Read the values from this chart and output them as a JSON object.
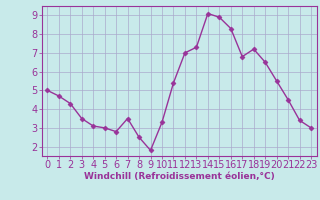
{
  "x": [
    0,
    1,
    2,
    3,
    4,
    5,
    6,
    7,
    8,
    9,
    10,
    11,
    12,
    13,
    14,
    15,
    16,
    17,
    18,
    19,
    20,
    21,
    22,
    23
  ],
  "y": [
    5.0,
    4.7,
    4.3,
    3.5,
    3.1,
    3.0,
    2.8,
    3.5,
    2.5,
    1.8,
    3.3,
    5.4,
    7.0,
    7.3,
    9.1,
    8.9,
    8.3,
    6.8,
    7.2,
    6.5,
    5.5,
    4.5,
    3.4,
    3.0
  ],
  "line_color": "#993399",
  "marker": "D",
  "marker_size": 2.5,
  "bg_color": "#c8eaea",
  "grid_color": "#aaaacc",
  "xlabel": "Windchill (Refroidissement éolien,°C)",
  "xlabel_color": "#993399",
  "tick_color": "#993399",
  "label_color": "#993399",
  "spine_color": "#993399",
  "ylim": [
    1.5,
    9.5
  ],
  "xlim": [
    -0.5,
    23.5
  ],
  "yticks": [
    2,
    3,
    4,
    5,
    6,
    7,
    8,
    9
  ],
  "xticks": [
    0,
    1,
    2,
    3,
    4,
    5,
    6,
    7,
    8,
    9,
    10,
    11,
    12,
    13,
    14,
    15,
    16,
    17,
    18,
    19,
    20,
    21,
    22,
    23
  ],
  "tick_fontsize": 7,
  "xlabel_fontsize": 6.5,
  "linewidth": 1.0
}
